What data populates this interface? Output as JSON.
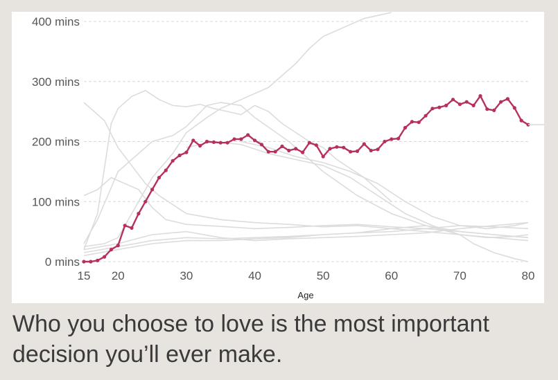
{
  "chart_data": {
    "type": "line",
    "xlabel": "Age",
    "ylabel": "",
    "xlim": [
      15,
      80
    ],
    "ylim": [
      0,
      400
    ],
    "x_ticks": [
      15,
      20,
      30,
      40,
      50,
      60,
      70,
      80
    ],
    "y_ticks": [
      {
        "value": 0,
        "label": "0 mins"
      },
      {
        "value": 100,
        "label": "100 mins"
      },
      {
        "value": 200,
        "label": "200 mins"
      },
      {
        "value": 300,
        "label": "300 mins"
      },
      {
        "value": 400,
        "label": "400 mins"
      }
    ],
    "grid": "horizontal-dashed",
    "colors": {
      "highlight": "#b5305e",
      "background_series": "#dcdcdc",
      "grid": "#d8d8d8"
    },
    "highlight_series": {
      "x": [
        15,
        16,
        17,
        18,
        19,
        20,
        21,
        22,
        23,
        24,
        25,
        26,
        27,
        28,
        29,
        30,
        31,
        32,
        33,
        34,
        35,
        36,
        37,
        38,
        39,
        40,
        41,
        42,
        43,
        44,
        45,
        46,
        47,
        48,
        49,
        50,
        51,
        52,
        53,
        54,
        55,
        56,
        57,
        58,
        59,
        60,
        61,
        62,
        63,
        64,
        65,
        66,
        67,
        68,
        69,
        70,
        71,
        72,
        73,
        74,
        75,
        76,
        77,
        78,
        79,
        80
      ],
      "values": [
        0,
        0,
        2,
        8,
        20,
        27,
        60,
        56,
        80,
        100,
        120,
        140,
        152,
        168,
        177,
        182,
        202,
        193,
        200,
        199,
        198,
        198,
        204,
        204,
        211,
        202,
        195,
        183,
        183,
        192,
        185,
        188,
        182,
        198,
        194,
        175,
        188,
        191,
        190,
        183,
        184,
        196,
        185,
        187,
        200,
        204,
        205,
        223,
        233,
        232,
        243,
        255,
        257,
        260,
        270,
        262,
        266,
        260,
        276,
        254,
        252,
        266,
        271,
        256,
        235,
        228
      ]
    },
    "background_series": [
      {
        "x": [
          15,
          18,
          20,
          22,
          24,
          26,
          28,
          30,
          35,
          40,
          45,
          50,
          55,
          60,
          65,
          70,
          75,
          80
        ],
        "values": [
          265,
          235,
          190,
          160,
          130,
          110,
          95,
          80,
          70,
          65,
          62,
          58,
          60,
          55,
          50,
          45,
          40,
          35
        ]
      },
      {
        "x": [
          15,
          17,
          19,
          21,
          23,
          25,
          27,
          30,
          33,
          36,
          40,
          45,
          50,
          55,
          60,
          65,
          70,
          75,
          80
        ],
        "values": [
          110,
          120,
          140,
          130,
          120,
          90,
          70,
          62,
          60,
          58,
          55,
          57,
          60,
          62,
          58,
          55,
          50,
          45,
          40
        ]
      },
      {
        "x": [
          15,
          17,
          20,
          22,
          25,
          28,
          30,
          33,
          35,
          38,
          40,
          45,
          50,
          55,
          60,
          65,
          70,
          75,
          80
        ],
        "values": [
          30,
          70,
          150,
          170,
          200,
          210,
          225,
          260,
          265,
          260,
          240,
          200,
          150,
          110,
          80,
          60,
          50,
          45,
          40
        ]
      },
      {
        "x": [
          15,
          17,
          19,
          20,
          22,
          24,
          26,
          28,
          30,
          32,
          34,
          36,
          38,
          40,
          42,
          44,
          46,
          48,
          50,
          52,
          54,
          56,
          58,
          60
        ],
        "values": [
          20,
          80,
          230,
          255,
          275,
          285,
          270,
          260,
          258,
          262,
          255,
          250,
          245,
          260,
          250,
          230,
          215,
          200,
          190,
          170,
          155,
          140,
          120,
          100
        ]
      },
      {
        "x": [
          15,
          18,
          20,
          23,
          25,
          28,
          30,
          33,
          35,
          38,
          40,
          42,
          44,
          46,
          48,
          50,
          52,
          54,
          56,
          58,
          60
        ],
        "values": [
          25,
          30,
          40,
          100,
          140,
          180,
          215,
          240,
          255,
          270,
          280,
          290,
          310,
          330,
          355,
          375,
          385,
          395,
          405,
          410,
          415
        ]
      },
      {
        "x": [
          15,
          20,
          25,
          30,
          35,
          40,
          45,
          50,
          55,
          60,
          65,
          70,
          75,
          80
        ],
        "values": [
          20,
          30,
          45,
          50,
          40,
          35,
          38,
          40,
          42,
          45,
          48,
          55,
          60,
          65
        ]
      },
      {
        "x": [
          15,
          20,
          25,
          30,
          35,
          40,
          45,
          50,
          55,
          60,
          65,
          70,
          75,
          80
        ],
        "values": [
          15,
          25,
          35,
          40,
          38,
          40,
          42,
          45,
          48,
          50,
          55,
          60,
          58,
          55
        ]
      },
      {
        "x": [
          15,
          20,
          25,
          30,
          35,
          40,
          45,
          50,
          55,
          60,
          65,
          70,
          72,
          75,
          78,
          80
        ],
        "values": [
          10,
          20,
          30,
          35,
          35,
          38,
          40,
          45,
          48,
          55,
          60,
          45,
          30,
          15,
          5,
          0
        ]
      },
      {
        "x": [
          38,
          42,
          46,
          50,
          54,
          58,
          62,
          66,
          70,
          74,
          78,
          80
        ],
        "values": [
          200,
          190,
          175,
          165,
          150,
          130,
          100,
          75,
          60,
          55,
          60,
          65
        ]
      },
      {
        "x": [
          30,
          34,
          38,
          42,
          46,
          50,
          54,
          58,
          62,
          66,
          70,
          74,
          78,
          80
        ],
        "values": [
          190,
          200,
          195,
          180,
          170,
          160,
          140,
          110,
          80,
          60,
          45,
          40,
          42,
          45
        ]
      }
    ]
  },
  "caption": "Who you choose to love is the most important decision you’ll ever make."
}
